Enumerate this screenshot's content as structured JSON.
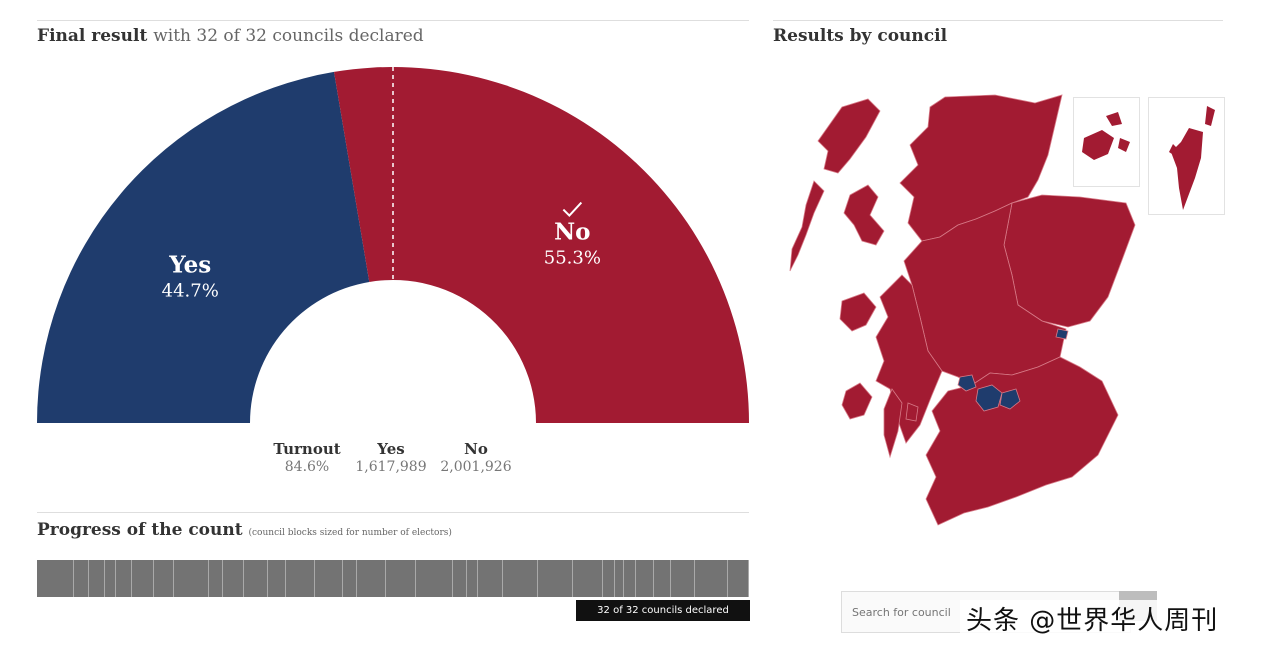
{
  "header": {
    "title": "Final result",
    "subtitle": "with 32 of 32 councils declared",
    "map_title": "Results by council"
  },
  "chart_data": {
    "type": "pie",
    "style": "semicircle-donut",
    "categories": [
      "Yes",
      "No"
    ],
    "values": [
      44.7,
      55.3
    ],
    "labels": [
      "44.7%",
      "55.3%"
    ],
    "winner": "No",
    "winner_mark": "checkmark-icon",
    "midline": "dashed-50-percent",
    "colors": {
      "Yes": "#1f3c6d",
      "No": "#a21b32"
    }
  },
  "stats": {
    "turnout_label": "Turnout",
    "turnout_value": "84.6%",
    "yes_label": "Yes",
    "yes_value": "1,617,989",
    "no_label": "No",
    "no_value": "2,001,926"
  },
  "progress": {
    "title": "Progress of the count",
    "note": "(council blocks sized for number of electors)",
    "councils_total": 32,
    "councils_declared": 32,
    "declared_text": "32 of 32 councils declared"
  },
  "map": {
    "search_placeholder": "Search for council",
    "colors": {
      "no": "#a21b32",
      "yes": "#1f3c6d"
    }
  },
  "watermark": "头条 @世界华人周刊"
}
